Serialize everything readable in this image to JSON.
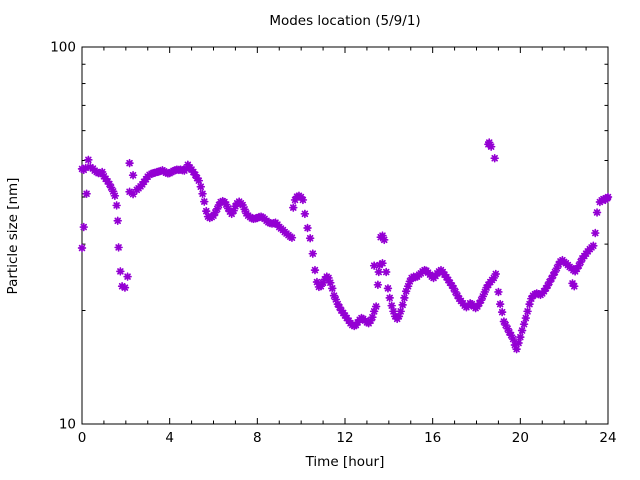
{
  "window": {
    "background_color": "#ffffff",
    "axis_color": "#000000",
    "text_color": "#000000"
  },
  "chart_data": {
    "type": "scatter",
    "title": "Modes location (5/9/1)",
    "xlabel": "Time [hour]",
    "ylabel": "Particle size [nm]",
    "x_range": [
      0,
      24
    ],
    "y_range": [
      10,
      100
    ],
    "y_scale": "log",
    "x_major_ticks": [
      0,
      4,
      8,
      12,
      16,
      20,
      24
    ],
    "x_minor_tick_step": 1,
    "y_major_ticks": [
      10,
      100
    ],
    "y_minor_ticks": [
      20,
      30,
      40,
      50,
      60,
      70,
      80,
      90
    ],
    "grid": false,
    "legend": "none",
    "marker": "asterisk",
    "marker_color": "#9400d3",
    "series": [
      {
        "name": "mode-location-main-trace",
        "color": "#9400d3",
        "points": [
          [
            0.0,
            47.5
          ],
          [
            0.08,
            47.2
          ],
          [
            0.17,
            47.8
          ],
          [
            0.29,
            50.2
          ],
          [
            0.38,
            48.0
          ],
          [
            0.5,
            47.6
          ],
          [
            0.58,
            47.0
          ],
          [
            0.67,
            46.6
          ],
          [
            0.75,
            46.3
          ],
          [
            0.83,
            46.3
          ],
          [
            0.92,
            46.6
          ],
          [
            1.0,
            45.4
          ],
          [
            1.08,
            44.7
          ],
          [
            1.17,
            44.0
          ],
          [
            1.25,
            43.3
          ],
          [
            1.33,
            42.4
          ],
          [
            1.42,
            41.4
          ],
          [
            1.5,
            40.3
          ],
          [
            1.58,
            38.0
          ],
          [
            1.63,
            34.6
          ],
          [
            1.67,
            29.4
          ],
          [
            1.75,
            25.4
          ],
          [
            1.83,
            23.2
          ],
          [
            1.96,
            23.0
          ],
          [
            2.08,
            24.6
          ],
          [
            2.17,
            41.3
          ],
          [
            2.33,
            40.7
          ],
          [
            2.5,
            41.8
          ],
          [
            2.58,
            42.2
          ],
          [
            2.67,
            42.7
          ],
          [
            2.75,
            43.2
          ],
          [
            2.83,
            43.9
          ],
          [
            2.92,
            44.6
          ],
          [
            3.0,
            45.3
          ],
          [
            3.08,
            45.8
          ],
          [
            3.17,
            46.1
          ],
          [
            3.25,
            46.3
          ],
          [
            3.33,
            46.4
          ],
          [
            3.42,
            46.6
          ],
          [
            3.5,
            46.7
          ],
          [
            3.58,
            46.9
          ],
          [
            3.67,
            47.1
          ],
          [
            3.75,
            46.8
          ],
          [
            3.83,
            46.4
          ],
          [
            3.92,
            46.2
          ],
          [
            4.0,
            46.3
          ],
          [
            4.08,
            46.6
          ],
          [
            4.17,
            46.9
          ],
          [
            4.25,
            47.1
          ],
          [
            4.33,
            47.3
          ],
          [
            4.42,
            47.2
          ],
          [
            4.5,
            47.3
          ],
          [
            4.58,
            47.1
          ],
          [
            4.67,
            47.0
          ],
          [
            4.75,
            47.6
          ],
          [
            4.83,
            48.7
          ],
          [
            4.92,
            47.9
          ],
          [
            5.0,
            47.3
          ],
          [
            5.08,
            46.6
          ],
          [
            5.17,
            45.8
          ],
          [
            5.25,
            44.9
          ],
          [
            5.33,
            44.2
          ],
          [
            5.42,
            42.6
          ],
          [
            5.5,
            40.8
          ],
          [
            5.58,
            38.9
          ],
          [
            5.67,
            36.7
          ],
          [
            5.75,
            35.5
          ],
          [
            5.83,
            35.2
          ],
          [
            5.92,
            35.4
          ],
          [
            6.0,
            35.7
          ],
          [
            6.08,
            36.4
          ],
          [
            6.17,
            37.2
          ],
          [
            6.25,
            38.1
          ],
          [
            6.33,
            38.8
          ],
          [
            6.42,
            39.0
          ],
          [
            6.5,
            38.8
          ],
          [
            6.58,
            38.2
          ],
          [
            6.67,
            37.3
          ],
          [
            6.75,
            36.6
          ],
          [
            6.83,
            36.1
          ],
          [
            6.92,
            36.8
          ],
          [
            7.0,
            37.8
          ],
          [
            7.08,
            38.5
          ],
          [
            7.17,
            38.9
          ],
          [
            7.25,
            38.5
          ],
          [
            7.33,
            38.1
          ],
          [
            7.42,
            37.1
          ],
          [
            7.5,
            36.2
          ],
          [
            7.58,
            35.7
          ],
          [
            7.67,
            35.4
          ],
          [
            7.75,
            35.1
          ],
          [
            7.83,
            35.0
          ],
          [
            7.92,
            35.1
          ],
          [
            8.0,
            35.2
          ],
          [
            8.08,
            35.4
          ],
          [
            8.17,
            35.5
          ],
          [
            8.25,
            35.3
          ],
          [
            8.33,
            35.0
          ],
          [
            8.42,
            34.6
          ],
          [
            8.5,
            34.3
          ],
          [
            8.58,
            34.1
          ],
          [
            8.67,
            34.0
          ],
          [
            8.75,
            34.1
          ],
          [
            8.83,
            34.2
          ],
          [
            8.92,
            33.8
          ],
          [
            9.0,
            33.3
          ],
          [
            9.08,
            33.0
          ],
          [
            9.17,
            32.7
          ],
          [
            9.25,
            32.3
          ],
          [
            9.33,
            32.0
          ],
          [
            9.42,
            31.7
          ],
          [
            9.5,
            31.4
          ],
          [
            9.58,
            31.2
          ],
          [
            9.64,
            37.5
          ],
          [
            9.72,
            39.3
          ],
          [
            9.81,
            40.1
          ],
          [
            9.9,
            40.3
          ],
          [
            9.99,
            40.0
          ],
          [
            10.08,
            39.3
          ],
          [
            10.17,
            36.1
          ],
          [
            10.29,
            33.1
          ],
          [
            10.41,
            31.1
          ],
          [
            10.53,
            28.3
          ],
          [
            10.63,
            25.6
          ],
          [
            10.72,
            23.8
          ],
          [
            10.81,
            23.1
          ],
          [
            10.9,
            23.2
          ],
          [
            11.0,
            23.7
          ],
          [
            11.08,
            24.2
          ],
          [
            11.17,
            24.6
          ],
          [
            11.25,
            24.4
          ],
          [
            11.33,
            23.7
          ],
          [
            11.42,
            22.9
          ],
          [
            11.5,
            21.9
          ],
          [
            11.58,
            21.4
          ],
          [
            11.67,
            20.8
          ],
          [
            11.75,
            20.4
          ],
          [
            11.83,
            20.0
          ],
          [
            11.92,
            19.7
          ],
          [
            12.0,
            19.4
          ],
          [
            12.08,
            19.1
          ],
          [
            12.17,
            18.8
          ],
          [
            12.25,
            18.5
          ],
          [
            12.33,
            18.3
          ],
          [
            12.42,
            18.2
          ],
          [
            12.5,
            18.3
          ],
          [
            12.58,
            18.6
          ],
          [
            12.67,
            18.9
          ],
          [
            12.75,
            19.1
          ],
          [
            12.83,
            19.0
          ],
          [
            12.92,
            18.8
          ],
          [
            13.0,
            18.6
          ],
          [
            13.08,
            18.5
          ],
          [
            13.17,
            18.8
          ],
          [
            13.25,
            19.2
          ],
          [
            13.33,
            19.9
          ],
          [
            13.42,
            20.5
          ],
          [
            13.5,
            23.4
          ],
          [
            13.58,
            26.4
          ],
          [
            13.63,
            31.3
          ],
          [
            13.71,
            31.6
          ],
          [
            13.79,
            30.8
          ],
          [
            13.88,
            25.3
          ],
          [
            13.96,
            22.9
          ],
          [
            14.04,
            21.6
          ],
          [
            14.13,
            20.6
          ],
          [
            14.21,
            19.9
          ],
          [
            14.29,
            19.3
          ],
          [
            14.38,
            19.0
          ],
          [
            14.46,
            19.3
          ],
          [
            14.54,
            19.9
          ],
          [
            14.63,
            20.7
          ],
          [
            14.71,
            21.6
          ],
          [
            14.79,
            22.5
          ],
          [
            14.88,
            23.2
          ],
          [
            14.96,
            23.9
          ],
          [
            15.04,
            24.4
          ],
          [
            15.13,
            24.6
          ],
          [
            15.21,
            24.5
          ],
          [
            15.29,
            24.6
          ],
          [
            15.38,
            24.9
          ],
          [
            15.46,
            25.1
          ],
          [
            15.54,
            25.4
          ],
          [
            15.63,
            25.6
          ],
          [
            15.71,
            25.5
          ],
          [
            15.79,
            25.2
          ],
          [
            15.88,
            24.9
          ],
          [
            15.96,
            24.6
          ],
          [
            16.04,
            24.4
          ],
          [
            16.13,
            24.7
          ],
          [
            16.21,
            25.1
          ],
          [
            16.29,
            25.4
          ],
          [
            16.38,
            25.6
          ],
          [
            16.46,
            25.3
          ],
          [
            16.54,
            24.9
          ],
          [
            16.63,
            24.5
          ],
          [
            16.71,
            24.1
          ],
          [
            16.79,
            23.7
          ],
          [
            16.88,
            23.3
          ],
          [
            16.96,
            22.9
          ],
          [
            17.04,
            22.4
          ],
          [
            17.13,
            21.9
          ],
          [
            17.21,
            21.5
          ],
          [
            17.29,
            21.2
          ],
          [
            17.38,
            20.9
          ],
          [
            17.46,
            20.6
          ],
          [
            17.54,
            20.4
          ],
          [
            17.63,
            20.6
          ],
          [
            17.71,
            20.9
          ],
          [
            17.79,
            20.8
          ],
          [
            17.88,
            20.5
          ],
          [
            17.96,
            20.3
          ],
          [
            18.04,
            20.5
          ],
          [
            18.13,
            20.9
          ],
          [
            18.21,
            21.3
          ],
          [
            18.29,
            21.8
          ],
          [
            18.38,
            22.4
          ],
          [
            18.46,
            23.0
          ],
          [
            18.54,
            23.4
          ],
          [
            18.63,
            23.8
          ],
          [
            18.71,
            24.1
          ],
          [
            18.79,
            24.4
          ],
          [
            18.88,
            25.0
          ],
          [
            19.0,
            22.4
          ],
          [
            19.08,
            20.8
          ],
          [
            19.17,
            19.8
          ],
          [
            19.25,
            18.7
          ],
          [
            19.33,
            18.3
          ],
          [
            19.42,
            17.9
          ],
          [
            19.5,
            17.5
          ],
          [
            19.58,
            17.2
          ],
          [
            19.67,
            16.8
          ],
          [
            19.75,
            16.2
          ],
          [
            19.83,
            15.8
          ],
          [
            19.92,
            16.4
          ],
          [
            20.0,
            17.0
          ],
          [
            20.08,
            17.7
          ],
          [
            20.17,
            18.4
          ],
          [
            20.25,
            19.1
          ],
          [
            20.33,
            19.9
          ],
          [
            20.42,
            20.8
          ],
          [
            20.5,
            21.5
          ],
          [
            20.58,
            21.9
          ],
          [
            20.67,
            22.1
          ],
          [
            20.75,
            22.2
          ],
          [
            20.83,
            22.1
          ],
          [
            20.92,
            22.0
          ],
          [
            21.0,
            22.2
          ],
          [
            21.08,
            22.5
          ],
          [
            21.17,
            22.9
          ],
          [
            21.25,
            23.3
          ],
          [
            21.33,
            23.8
          ],
          [
            21.42,
            24.3
          ],
          [
            21.5,
            24.8
          ],
          [
            21.58,
            25.3
          ],
          [
            21.67,
            25.9
          ],
          [
            21.75,
            26.5
          ],
          [
            21.83,
            27.0
          ],
          [
            21.92,
            27.2
          ],
          [
            22.0,
            26.9
          ],
          [
            22.08,
            26.7
          ],
          [
            22.17,
            26.4
          ],
          [
            22.25,
            26.1
          ],
          [
            22.33,
            25.9
          ],
          [
            22.42,
            25.6
          ],
          [
            22.5,
            25.4
          ],
          [
            22.58,
            25.8
          ],
          [
            22.67,
            26.3
          ],
          [
            22.75,
            26.9
          ],
          [
            22.83,
            27.5
          ],
          [
            22.92,
            27.9
          ],
          [
            23.0,
            28.3
          ],
          [
            23.08,
            28.7
          ],
          [
            23.17,
            29.1
          ],
          [
            23.25,
            29.4
          ],
          [
            23.33,
            29.7
          ],
          [
            23.42,
            32.1
          ],
          [
            23.5,
            36.4
          ],
          [
            23.63,
            38.8
          ],
          [
            23.71,
            39.2
          ],
          [
            23.79,
            39.5
          ],
          [
            23.88,
            39.3
          ],
          [
            23.96,
            39.7
          ],
          [
            24.0,
            40.0
          ]
        ]
      },
      {
        "name": "secondary-mode-points",
        "color": "#9400d3",
        "points": [
          [
            0.0,
            29.3
          ],
          [
            0.08,
            33.3
          ],
          [
            0.21,
            40.8
          ],
          [
            2.17,
            49.2
          ],
          [
            2.33,
            45.7
          ],
          [
            13.33,
            26.3
          ],
          [
            13.54,
            25.3
          ],
          [
            13.71,
            26.7
          ],
          [
            18.54,
            55.2
          ],
          [
            18.58,
            55.8
          ],
          [
            18.67,
            54.4
          ],
          [
            18.83,
            50.7
          ],
          [
            22.38,
            23.6
          ],
          [
            22.46,
            23.2
          ]
        ]
      }
    ]
  }
}
